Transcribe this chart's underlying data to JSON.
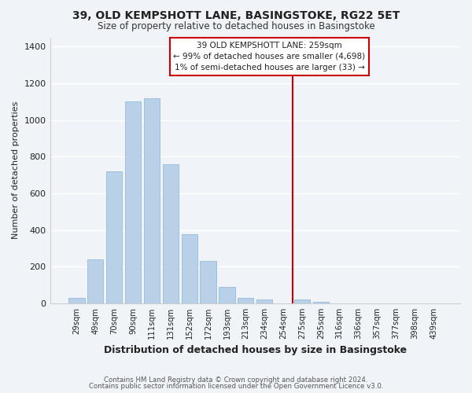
{
  "title": "39, OLD KEMPSHOTT LANE, BASINGSTOKE, RG22 5ET",
  "subtitle": "Size of property relative to detached houses in Basingstoke",
  "xlabel": "Distribution of detached houses by size in Basingstoke",
  "ylabel": "Number of detached properties",
  "bar_labels": [
    "29sqm",
    "49sqm",
    "70sqm",
    "90sqm",
    "111sqm",
    "131sqm",
    "152sqm",
    "172sqm",
    "193sqm",
    "213sqm",
    "234sqm",
    "254sqm",
    "275sqm",
    "295sqm",
    "316sqm",
    "336sqm",
    "357sqm",
    "377sqm",
    "398sqm",
    "439sqm"
  ],
  "bar_values": [
    30,
    240,
    720,
    1100,
    1120,
    760,
    375,
    230,
    90,
    30,
    20,
    0,
    20,
    10,
    0,
    0,
    0,
    0,
    0,
    0
  ],
  "bar_color": "#b8d0e8",
  "bar_edge_color": "#b8d0e8",
  "vline_x": 11.5,
  "vline_color": "#cc0000",
  "ylim": [
    0,
    1450
  ],
  "yticks": [
    0,
    200,
    400,
    600,
    800,
    1000,
    1200,
    1400
  ],
  "annotation_title": "39 OLD KEMPSHOTT LANE: 259sqm",
  "annotation_line1": "← 99% of detached houses are smaller (4,698)",
  "annotation_line2": "1% of semi-detached houses are larger (33) →",
  "footer1": "Contains HM Land Registry data © Crown copyright and database right 2024.",
  "footer2": "Contains public sector information licensed under the Open Government Licence v3.0.",
  "background_color": "#f0f4f8",
  "grid_color": "#dce8f0"
}
